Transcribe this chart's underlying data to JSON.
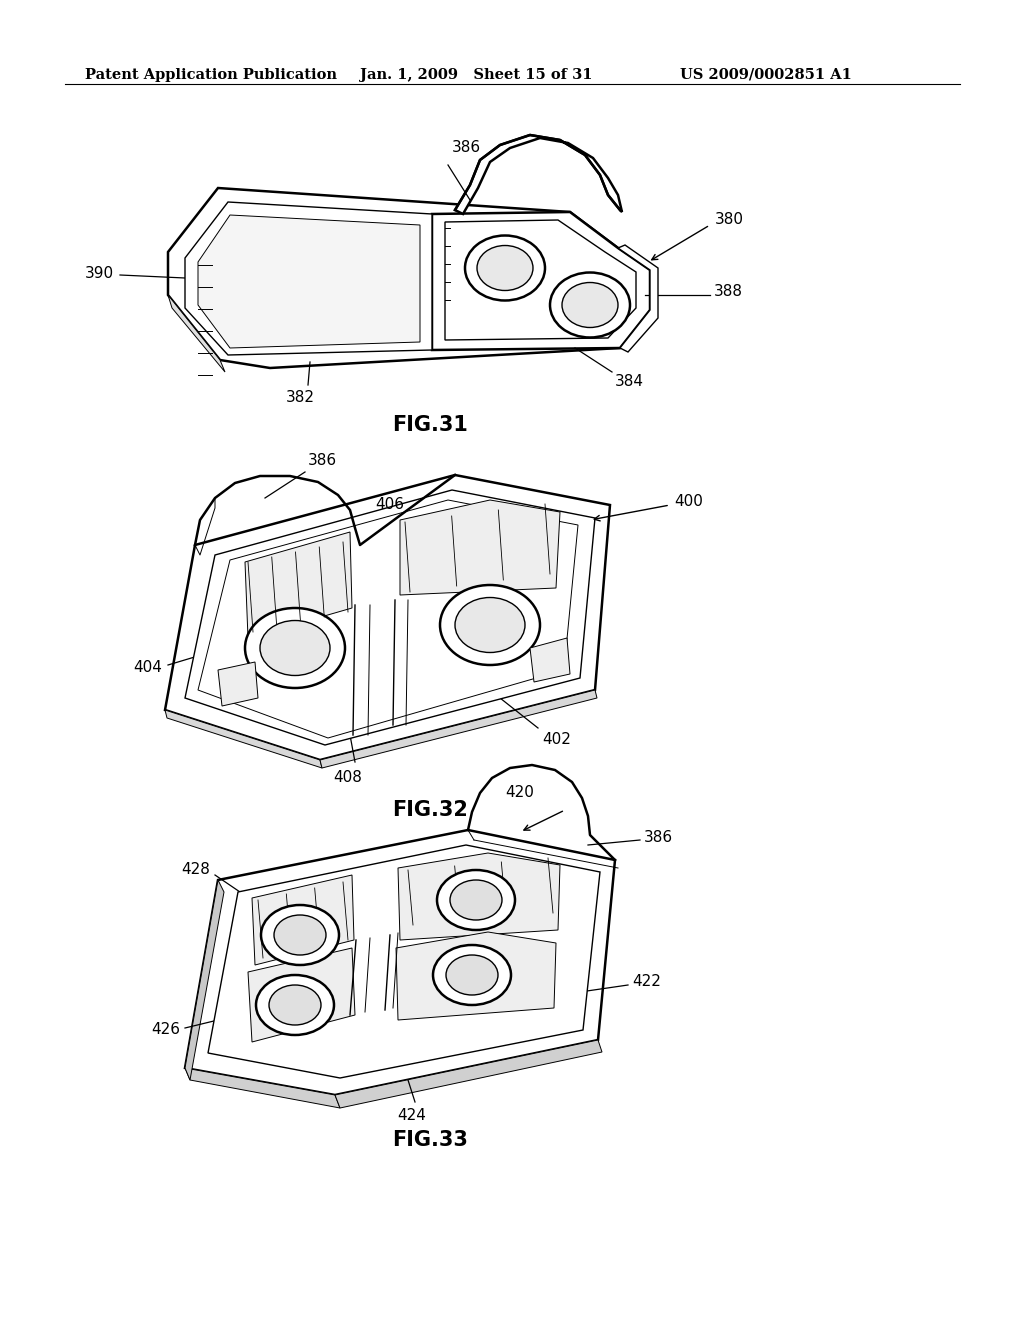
{
  "bg_color": "#ffffff",
  "header_left": "Patent Application Publication",
  "header_mid": "Jan. 1, 2009   Sheet 15 of 31",
  "header_right": "US 2009/0002851 A1",
  "fig31_label": "FIG.31",
  "fig32_label": "FIG.32",
  "fig33_label": "FIG.33",
  "line_color": "#000000",
  "text_color": "#000000",
  "font_size_header": 10.5,
  "font_size_label": 15,
  "font_size_ref": 11
}
